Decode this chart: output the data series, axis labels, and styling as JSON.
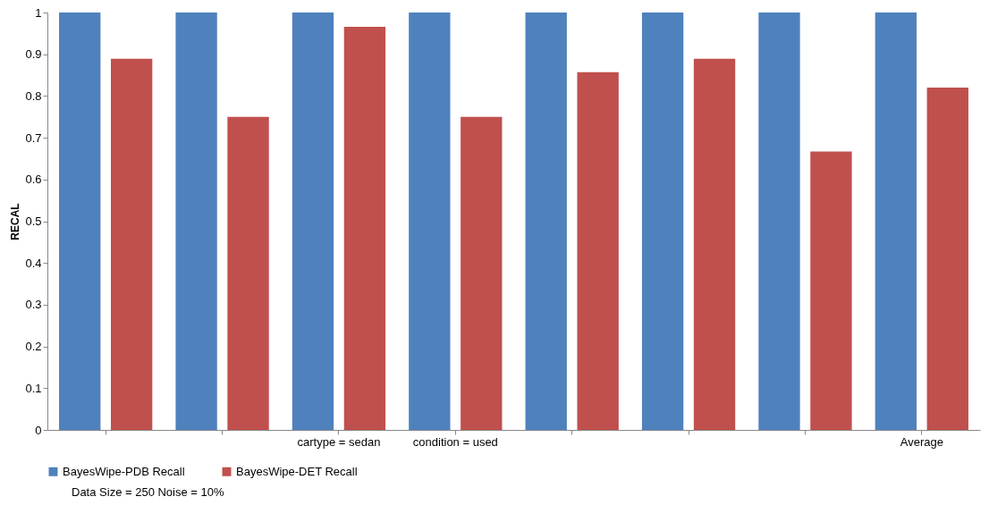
{
  "chart_data": {
    "type": "bar",
    "ylabel": "RECAL",
    "categories": [
      null,
      null,
      "cartype = sedan",
      "condition = used",
      null,
      null,
      null,
      "Average"
    ],
    "series": [
      {
        "name": "BayesWipe-PDB Recall",
        "color": "#4f81bd",
        "values": [
          1,
          1,
          1,
          1,
          1,
          1,
          1,
          1
        ]
      },
      {
        "name": "BayesWipe-DET Recall",
        "color": "#c0504d",
        "values": [
          0.889,
          0.75,
          0.966,
          0.75,
          0.857,
          0.889,
          0.667,
          0.82
        ]
      }
    ],
    "ylim": [
      0,
      1
    ],
    "yticks": [
      0,
      0.1,
      0.2,
      0.3,
      0.4,
      0.5,
      0.6,
      0.7,
      0.8,
      0.9,
      1
    ],
    "grid": false,
    "legend": "bottom",
    "annotations": [
      "Data Size = 250 Noise = 10%"
    ]
  }
}
